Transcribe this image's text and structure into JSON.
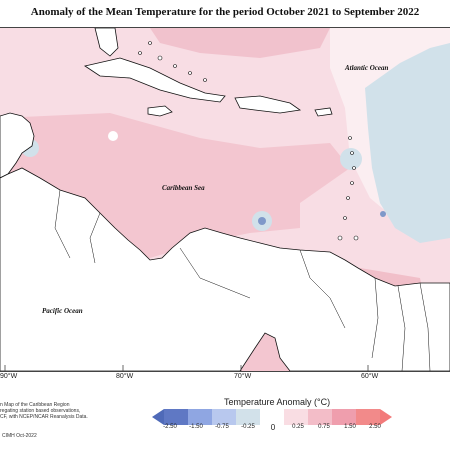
{
  "title": "Anomaly of the Mean Temperature for the period October 2021 to September 2022",
  "ocean_labels": {
    "atlantic": "Atlantic Ocean",
    "caribbean": "Caribbean Sea",
    "pacific": "Pacific Ocean"
  },
  "longitude_ticks": [
    "90°W",
    "80°W",
    "70°W",
    "60°W"
  ],
  "legend": {
    "title": "Temperature Anomaly (°C)",
    "labels": [
      "-2.50",
      "-1.50",
      "-0.75",
      "-0.25",
      "0",
      "0.25",
      "0.75",
      "1.50",
      "2.50"
    ],
    "colors": [
      "#5f78c4",
      "#8fa6e2",
      "#b8c8ee",
      "#d2e1ea",
      "#ffffff",
      "#f9dde3",
      "#f3bdc8",
      "#ef9ead",
      "#f28a8a"
    ]
  },
  "notes": {
    "text": "n Map of the Caribbean Region\nregating station based observations,\nCF, with NCEP/NCAR Reanalysis Data.",
    "credit": "CIMH Oct-2022"
  }
}
